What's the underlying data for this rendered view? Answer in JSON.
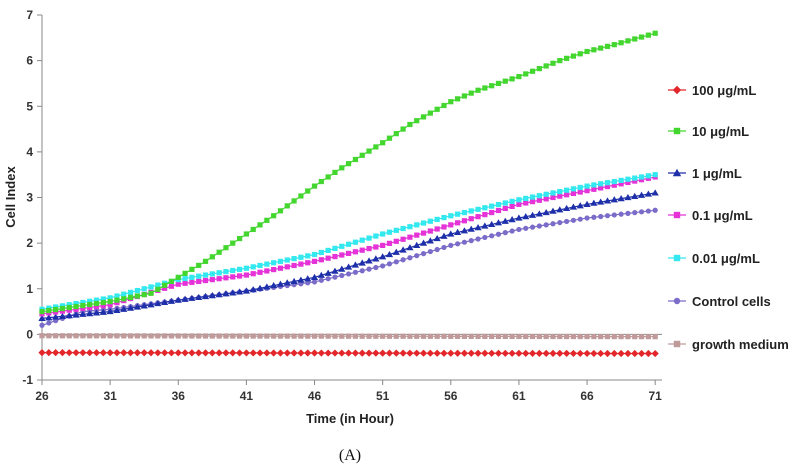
{
  "chart_data": {
    "type": "line",
    "xlabel": "Time (in Hour)",
    "ylabel": "Cell Index",
    "panel_label": "(A)",
    "xlim": [
      26,
      71.5
    ],
    "ylim": [
      -1,
      7
    ],
    "xticks": [
      26,
      31,
      36,
      41,
      46,
      51,
      56,
      61,
      66,
      71
    ],
    "yticks": [
      -1,
      0,
      1,
      2,
      3,
      4,
      5,
      6,
      7
    ],
    "grid": false,
    "legend_position": "right",
    "x_step": 0.5,
    "series": [
      {
        "name": "100 μg/mL",
        "color": "#e3262a",
        "marker": "diamond",
        "points": [
          [
            26,
            -0.4
          ],
          [
            71,
            -0.42
          ]
        ]
      },
      {
        "name": "10 μg/mL",
        "color": "#43d62f",
        "marker": "square",
        "points": [
          [
            26,
            0.5
          ],
          [
            31,
            0.72
          ],
          [
            34,
            0.9
          ],
          [
            36,
            1.25
          ],
          [
            38,
            1.6
          ],
          [
            41,
            2.2
          ],
          [
            43,
            2.6
          ],
          [
            46,
            3.25
          ],
          [
            48,
            3.65
          ],
          [
            51,
            4.2
          ],
          [
            53,
            4.6
          ],
          [
            56,
            5.1
          ],
          [
            58,
            5.35
          ],
          [
            61,
            5.65
          ],
          [
            64,
            6.0
          ],
          [
            66,
            6.2
          ],
          [
            68,
            6.35
          ],
          [
            71,
            6.6
          ]
        ]
      },
      {
        "name": "1 μg/mL",
        "color": "#1e2faa",
        "marker": "triangle",
        "points": [
          [
            26,
            0.35
          ],
          [
            31,
            0.5
          ],
          [
            36,
            0.75
          ],
          [
            41,
            0.95
          ],
          [
            46,
            1.25
          ],
          [
            51,
            1.7
          ],
          [
            56,
            2.2
          ],
          [
            61,
            2.55
          ],
          [
            66,
            2.85
          ],
          [
            71,
            3.1
          ]
        ]
      },
      {
        "name": "0.1 μg/mL",
        "color": "#e533d8",
        "marker": "square",
        "points": [
          [
            26,
            0.45
          ],
          [
            31,
            0.65
          ],
          [
            36,
            1.1
          ],
          [
            41,
            1.3
          ],
          [
            46,
            1.6
          ],
          [
            51,
            1.95
          ],
          [
            56,
            2.4
          ],
          [
            61,
            2.85
          ],
          [
            66,
            3.15
          ],
          [
            71,
            3.45
          ]
        ]
      },
      {
        "name": "0.01 μg/mL",
        "color": "#33e8ee",
        "marker": "square",
        "points": [
          [
            26,
            0.55
          ],
          [
            31,
            0.8
          ],
          [
            36,
            1.2
          ],
          [
            41,
            1.45
          ],
          [
            46,
            1.75
          ],
          [
            51,
            2.2
          ],
          [
            56,
            2.6
          ],
          [
            61,
            2.95
          ],
          [
            66,
            3.25
          ],
          [
            71,
            3.5
          ]
        ]
      },
      {
        "name": "Control cells",
        "color": "#7a6cc8",
        "marker": "circle",
        "points": [
          [
            26,
            0.2
          ],
          [
            29,
            0.5
          ],
          [
            31,
            0.55
          ],
          [
            36,
            0.75
          ],
          [
            41,
            0.95
          ],
          [
            46,
            1.15
          ],
          [
            51,
            1.5
          ],
          [
            56,
            1.95
          ],
          [
            61,
            2.3
          ],
          [
            66,
            2.55
          ],
          [
            71,
            2.72
          ]
        ]
      },
      {
        "name": "growth medium",
        "color": "#c09a9a",
        "marker": "square",
        "points": [
          [
            26,
            -0.03
          ],
          [
            71,
            -0.05
          ]
        ]
      }
    ]
  }
}
